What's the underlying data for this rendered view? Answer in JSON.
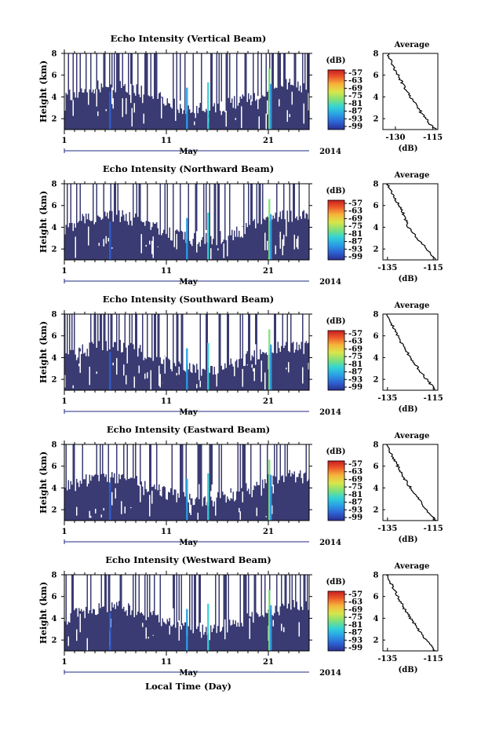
{
  "figure": {
    "x_axis_label": "Local Time (Day)",
    "month_label": "May",
    "year_label": "2014",
    "y_axis_label": "Height (km)",
    "colorbar_unit": "(dB)",
    "average_title": "Average",
    "average_xlabel": "(dB)"
  },
  "chart_data": [
    {
      "type": "heatmap",
      "title": "Echo Intensity (Vertical Beam)",
      "ylabel": "Height (km)",
      "xlabel": "May",
      "x_ticks": [
        "1",
        "11",
        "21"
      ],
      "y_ticks": [
        "2",
        "4",
        "6",
        "8"
      ],
      "xlim": [
        1,
        25
      ],
      "ylim": [
        1,
        8
      ],
      "colorbar": {
        "label": "(dB)",
        "ticks": [
          "-57",
          "-63",
          "-69",
          "-75",
          "-81",
          "-87",
          "-93",
          "-99"
        ],
        "range": [
          -99,
          -57
        ]
      },
      "average_profile": {
        "title": "Average",
        "xlabel": "(dB)",
        "x_ticks": [
          "-130",
          "-115"
        ],
        "xlim": [
          -135,
          -113
        ],
        "height": [
          1,
          2,
          3,
          4,
          5,
          6,
          7,
          8
        ],
        "value": [
          -114,
          -118,
          -121,
          -124,
          -126.5,
          -129,
          -131.5,
          -133
        ]
      }
    },
    {
      "type": "heatmap",
      "title": "Echo Intensity (Northward Beam)",
      "ylabel": "Height (km)",
      "xlabel": "May",
      "x_ticks": [
        "1",
        "11",
        "21"
      ],
      "y_ticks": [
        "2",
        "4",
        "6",
        "8"
      ],
      "xlim": [
        1,
        25
      ],
      "ylim": [
        1,
        8
      ],
      "colorbar": {
        "label": "(dB)",
        "ticks": [
          "-57",
          "-63",
          "-69",
          "-75",
          "-81",
          "-87",
          "-93",
          "-99"
        ],
        "range": [
          -99,
          -57
        ]
      },
      "average_profile": {
        "title": "Average",
        "xlabel": "(dB)",
        "x_ticks": [
          "-135",
          "-115"
        ],
        "xlim": [
          -137,
          -113
        ],
        "height": [
          1,
          2,
          3,
          4,
          5,
          6,
          7,
          8
        ],
        "value": [
          -114,
          -118,
          -122,
          -126,
          -127.5,
          -130,
          -132.5,
          -135
        ]
      }
    },
    {
      "type": "heatmap",
      "title": "Echo Intensity (Southward Beam)",
      "ylabel": "Height (km)",
      "xlabel": "May",
      "x_ticks": [
        "1",
        "11",
        "21"
      ],
      "y_ticks": [
        "2",
        "4",
        "6",
        "8"
      ],
      "xlim": [
        1,
        25
      ],
      "ylim": [
        1,
        8
      ],
      "colorbar": {
        "label": "(dB)",
        "ticks": [
          "-57",
          "-63",
          "-69",
          "-75",
          "-81",
          "-87",
          "-93",
          "-99"
        ],
        "range": [
          -99,
          -57
        ]
      },
      "average_profile": {
        "title": "Average",
        "xlabel": "(dB)",
        "x_ticks": [
          "-135",
          "-115"
        ],
        "xlim": [
          -137,
          -113
        ],
        "height": [
          1,
          2,
          3,
          4,
          5,
          6,
          7,
          8
        ],
        "value": [
          -114,
          -118,
          -121.5,
          -125,
          -128,
          -130.5,
          -133,
          -135.5
        ]
      }
    },
    {
      "type": "heatmap",
      "title": "Echo Intensity (Eastward Beam)",
      "ylabel": "Height (km)",
      "xlabel": "May",
      "x_ticks": [
        "1",
        "11",
        "21"
      ],
      "y_ticks": [
        "2",
        "4",
        "6",
        "8"
      ],
      "xlim": [
        1,
        25
      ],
      "ylim": [
        1,
        8
      ],
      "colorbar": {
        "label": "(dB)",
        "ticks": [
          "-57",
          "-63",
          "-69",
          "-75",
          "-81",
          "-87",
          "-93",
          "-99"
        ],
        "range": [
          -99,
          -57
        ]
      },
      "average_profile": {
        "title": "Average",
        "xlabel": "(dB)",
        "x_ticks": [
          "-135",
          "-115"
        ],
        "xlim": [
          -137,
          -113
        ],
        "height": [
          1,
          2,
          3,
          4,
          5,
          6,
          7,
          8
        ],
        "value": [
          -114,
          -118,
          -121.5,
          -125,
          -128,
          -130.5,
          -133,
          -135.5
        ]
      }
    },
    {
      "type": "heatmap",
      "title": "Echo Intensity (Westward Beam)",
      "ylabel": "Height (km)",
      "xlabel": "May",
      "x_ticks": [
        "1",
        "11",
        "21"
      ],
      "y_ticks": [
        "2",
        "4",
        "6",
        "8"
      ],
      "xlim": [
        1,
        25
      ],
      "ylim": [
        1,
        8
      ],
      "colorbar": {
        "label": "(dB)",
        "ticks": [
          "-57",
          "-63",
          "-69",
          "-75",
          "-81",
          "-87",
          "-93",
          "-99"
        ],
        "range": [
          -99,
          -57
        ]
      },
      "average_profile": {
        "title": "Average",
        "xlabel": "(dB)",
        "x_ticks": [
          "-135",
          "-115"
        ],
        "xlim": [
          -137,
          -113
        ],
        "height": [
          1,
          2,
          3,
          4,
          5,
          6,
          7,
          8
        ],
        "value": [
          -114,
          -118,
          -121.5,
          -125,
          -128,
          -130.5,
          -133,
          -135.5
        ]
      }
    }
  ],
  "colors": {
    "field": "#3a3b72",
    "colormap": [
      "#2a2f8f",
      "#2d5fd0",
      "#2a9ee6",
      "#33d3d6",
      "#7fe07a",
      "#d8e64a",
      "#f6b43a",
      "#ee5a2a",
      "#c81e1e"
    ]
  }
}
